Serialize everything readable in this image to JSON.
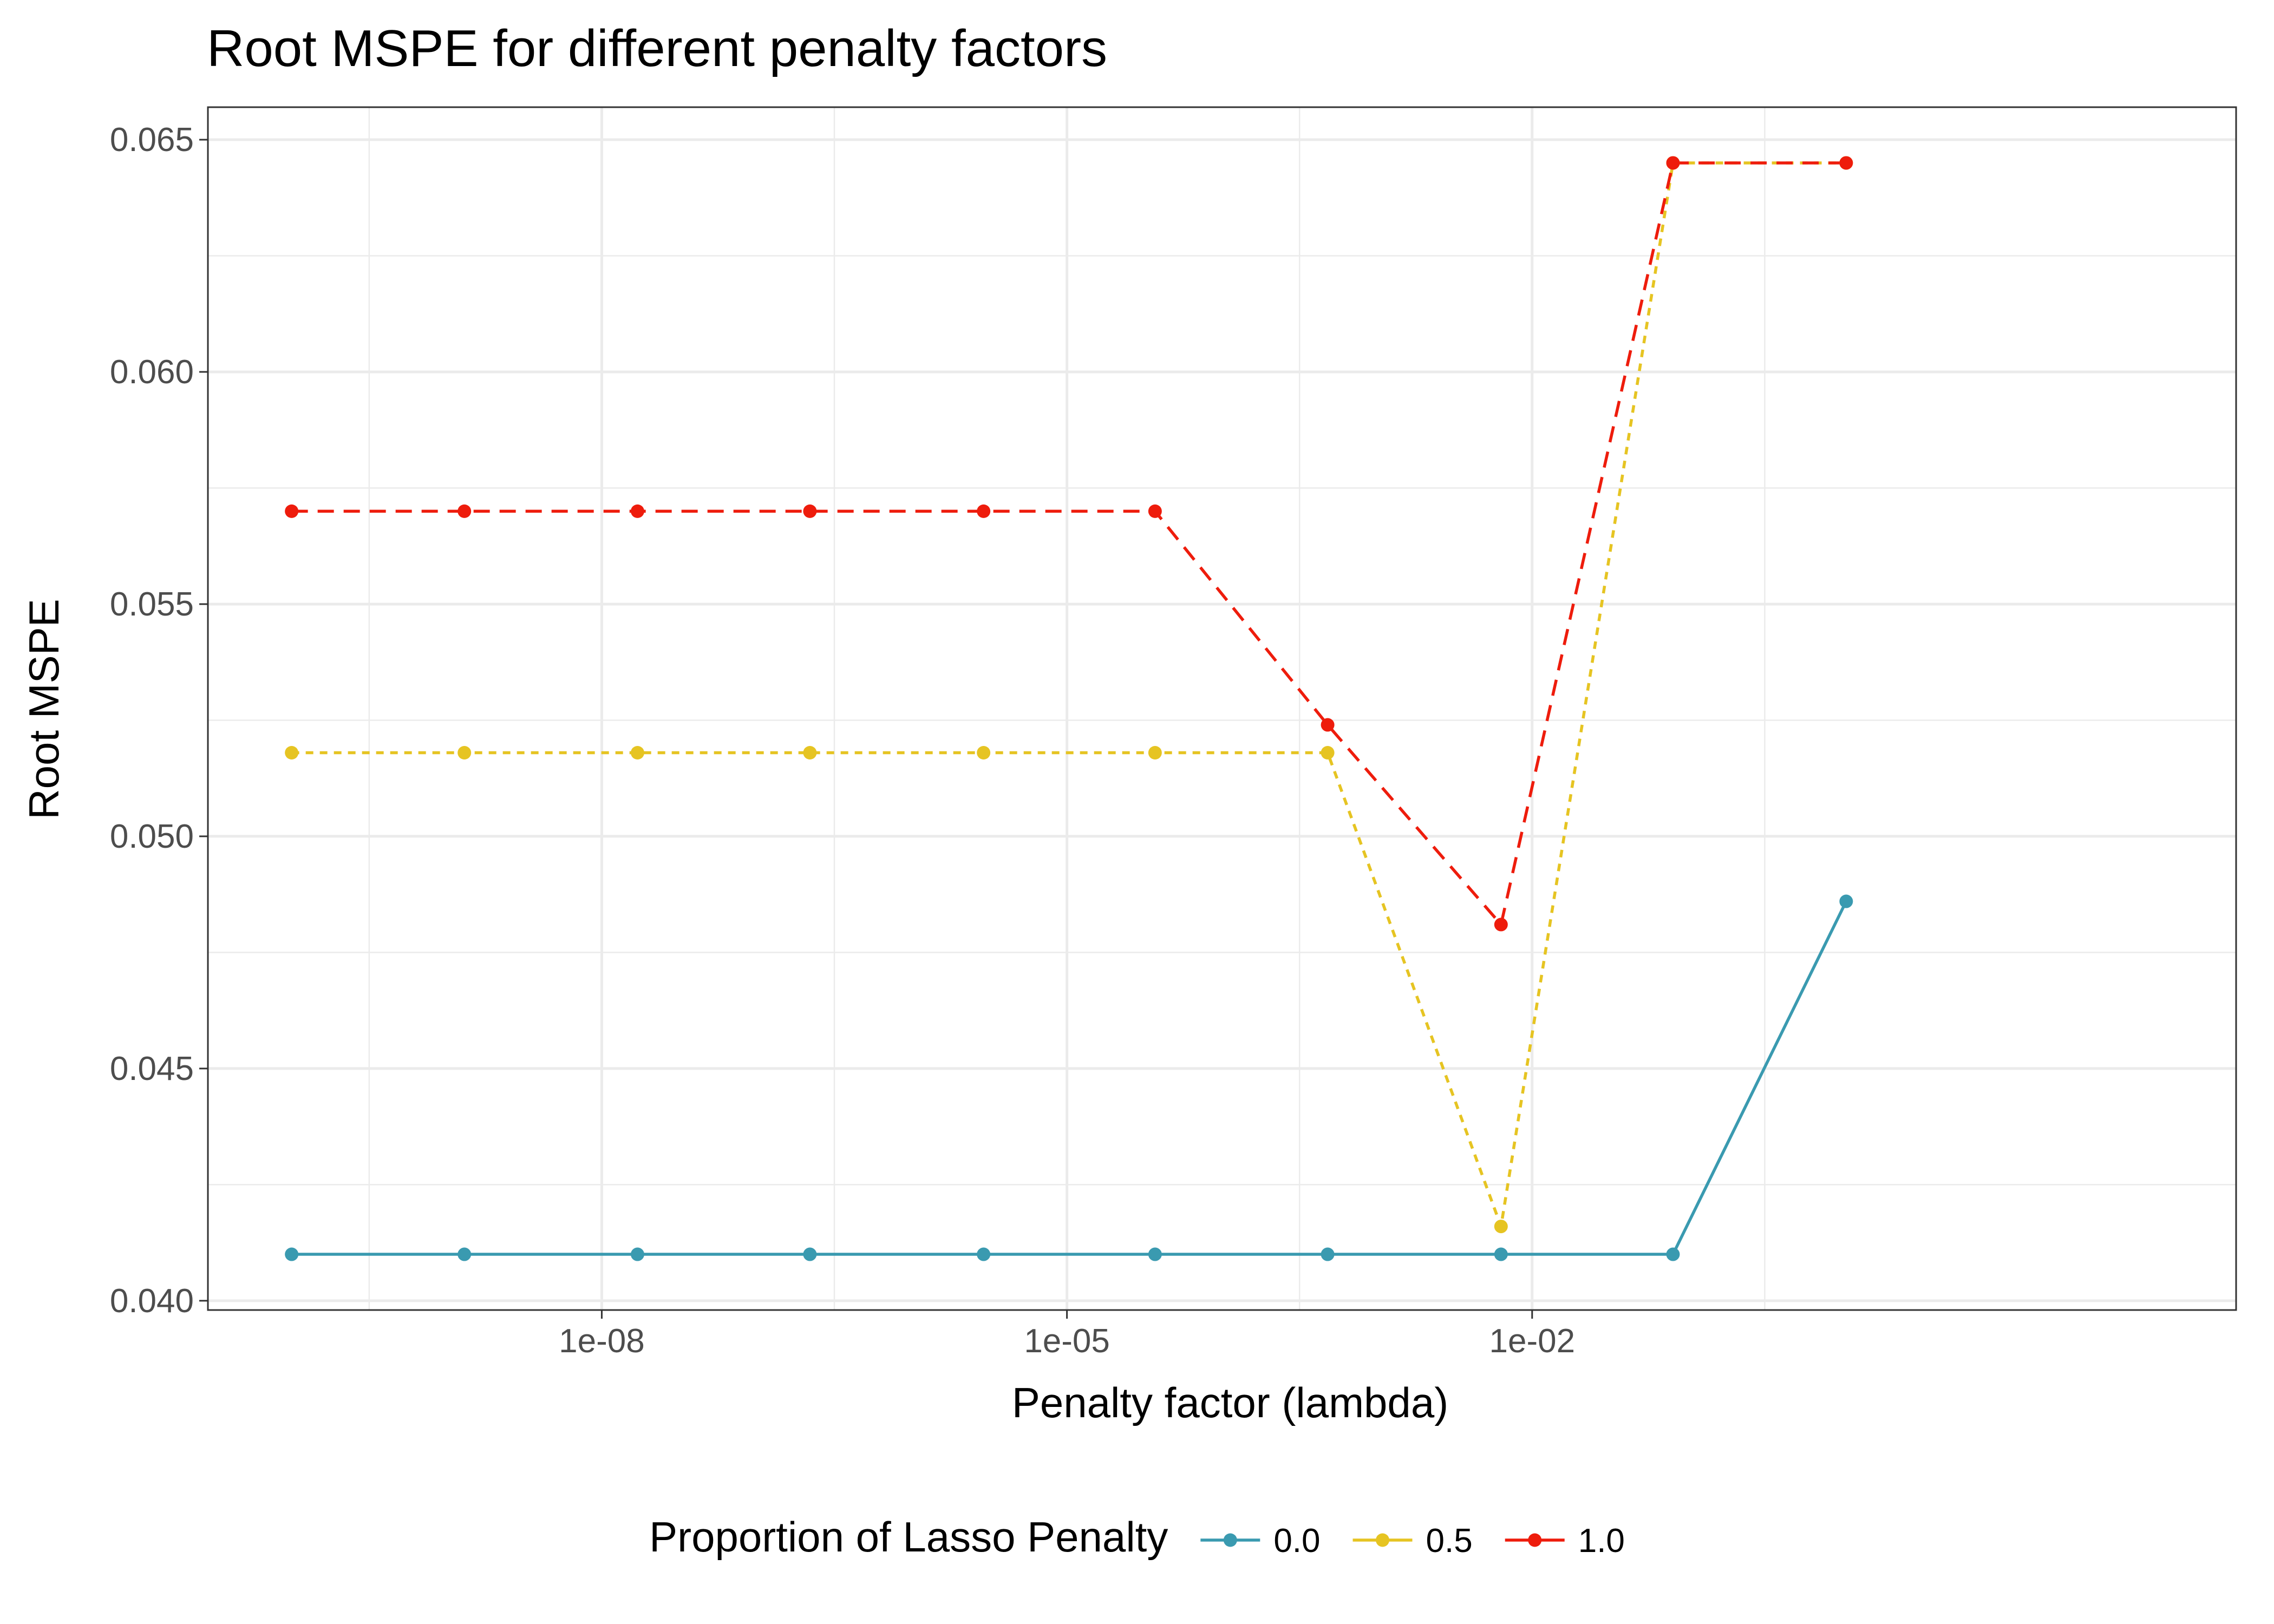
{
  "chart_data": {
    "type": "line",
    "title": "Root MSPE for different penalty factors",
    "xlabel": "Penalty factor (lambda)",
    "ylabel": "Root MSPE",
    "x_scale": "log10",
    "x_ticks": [
      {
        "value": 1e-08,
        "label": "1e-08"
      },
      {
        "value": 1e-05,
        "label": "1e-05"
      },
      {
        "value": 0.01,
        "label": "1e-02"
      }
    ],
    "y_ticks": [
      {
        "value": 0.04,
        "label": "0.040"
      },
      {
        "value": 0.045,
        "label": "0.045"
      },
      {
        "value": 0.05,
        "label": "0.050"
      },
      {
        "value": 0.055,
        "label": "0.055"
      },
      {
        "value": 0.06,
        "label": "0.060"
      },
      {
        "value": 0.065,
        "label": "0.065"
      }
    ],
    "xlim": [
      1e-10,
      100
    ],
    "ylim": [
      0.0398,
      0.0657
    ],
    "grid": true,
    "legend": {
      "title": "Proportion of Lasso Penalty",
      "position": "bottom"
    },
    "x": [
      1e-10,
      1.3e-09,
      1.7e-08,
      2.2e-07,
      2.9e-06,
      3.7e-05,
      0.00048,
      0.0063,
      0.081,
      1.06
    ],
    "series": [
      {
        "name": "0.0",
        "color": "#3a9ab0",
        "dash": "solid",
        "values": [
          0.041,
          0.041,
          0.041,
          0.041,
          0.041,
          0.041,
          0.041,
          0.041,
          0.041,
          0.0486
        ]
      },
      {
        "name": "0.5",
        "color": "#e6c422",
        "dash": "dotted",
        "values": [
          0.0518,
          0.0518,
          0.0518,
          0.0518,
          0.0518,
          0.0518,
          0.0518,
          0.0416,
          0.0645,
          0.0645
        ]
      },
      {
        "name": "1.0",
        "color": "#ee1c0c",
        "dash": "dashed",
        "values": [
          0.057,
          0.057,
          0.057,
          0.057,
          0.057,
          0.057,
          0.0524,
          0.0481,
          0.0645,
          0.0645
        ]
      }
    ]
  }
}
